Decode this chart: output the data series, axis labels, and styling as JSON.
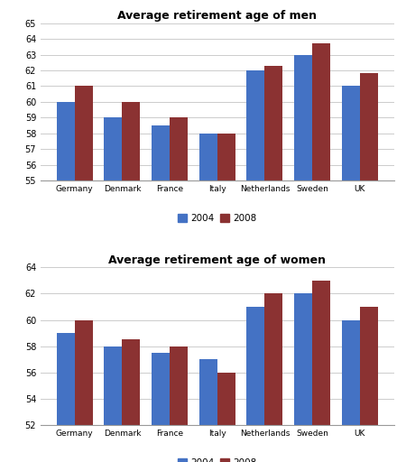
{
  "countries": [
    "Germany",
    "Denmark",
    "France",
    "Italy",
    "Netherlands",
    "Sweden",
    "UK"
  ],
  "men": {
    "title": "Average retirement age of men",
    "data_2004": [
      60.0,
      59.0,
      58.5,
      58.0,
      62.0,
      63.0,
      61.0
    ],
    "data_2008": [
      61.0,
      60.0,
      59.0,
      58.0,
      62.3,
      63.7,
      61.8
    ],
    "ylim": [
      55,
      65
    ],
    "yticks": [
      55,
      56,
      57,
      58,
      59,
      60,
      61,
      62,
      63,
      64,
      65
    ]
  },
  "women": {
    "title": "Average retirement age of women",
    "data_2004": [
      59.0,
      58.0,
      57.5,
      57.0,
      61.0,
      62.0,
      60.0
    ],
    "data_2008": [
      60.0,
      58.5,
      58.0,
      56.0,
      62.0,
      63.0,
      61.0
    ],
    "ylim": [
      52,
      64
    ],
    "yticks": [
      52,
      54,
      56,
      58,
      60,
      62,
      64
    ]
  },
  "color_2004": "#4472C4",
  "color_2008": "#8B3232",
  "bar_width": 0.38,
  "background_color": "#FFFFFF"
}
